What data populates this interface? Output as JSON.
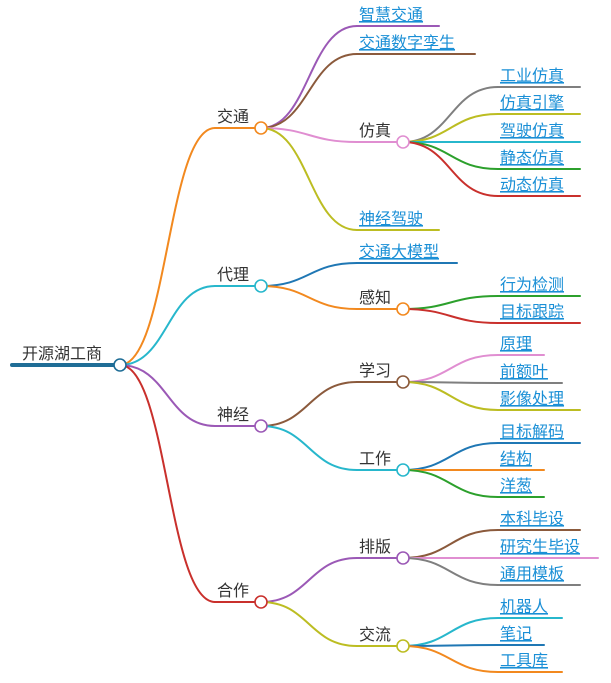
{
  "root": {
    "id": "root",
    "label": "开源湖工商"
  },
  "colors": {
    "root": "#1f6d96",
    "orange": "#f2891f",
    "cyan": "#27b7cc",
    "purple": "#9b59b6",
    "red": "#c9302c",
    "brown": "#8b5a3c",
    "pink": "#e08ed1",
    "olive": "#bcbd22",
    "gray": "#7f7f7f",
    "blue": "#1f77b4",
    "green": "#2ca02c",
    "leaf_text": "#1a8fd6"
  },
  "branches": [
    {
      "id": "traffic",
      "label": "交通",
      "color": "orange",
      "children": [
        {
          "id": "smart",
          "label": "智慧交通",
          "color": "purple",
          "link": true
        },
        {
          "id": "twin",
          "label": "交通数字孪生",
          "color": "brown",
          "link": true
        },
        {
          "id": "sim",
          "label": "仿真",
          "color": "pink",
          "children": [
            {
              "id": "ind",
              "label": "工业仿真",
              "color": "gray",
              "link": true
            },
            {
              "id": "engine",
              "label": "仿真引擎",
              "color": "olive",
              "link": true
            },
            {
              "id": "drive",
              "label": "驾驶仿真",
              "color": "cyan",
              "link": true
            },
            {
              "id": "static",
              "label": "静态仿真",
              "color": "green",
              "link": true
            },
            {
              "id": "dynamic",
              "label": "动态仿真",
              "color": "red",
              "link": true
            }
          ]
        },
        {
          "id": "neural",
          "label": "神经驾驶",
          "color": "olive",
          "link": true
        }
      ]
    },
    {
      "id": "agent",
      "label": "代理",
      "color": "cyan",
      "children": [
        {
          "id": "bigmodel",
          "label": "交通大模型",
          "color": "blue",
          "link": true
        },
        {
          "id": "perceive",
          "label": "感知",
          "color": "orange",
          "children": [
            {
              "id": "behavior",
              "label": "行为检测",
              "color": "green",
              "link": true
            },
            {
              "id": "tracking",
              "label": "目标跟踪",
              "color": "red",
              "link": true
            }
          ]
        }
      ]
    },
    {
      "id": "nerve",
      "label": "神经",
      "color": "purple",
      "children": [
        {
          "id": "learn",
          "label": "学习",
          "color": "brown",
          "children": [
            {
              "id": "principle",
              "label": "原理",
              "color": "pink",
              "link": true
            },
            {
              "id": "forehead",
              "label": "前额叶",
              "color": "gray",
              "link": true
            },
            {
              "id": "image",
              "label": "影像处理",
              "color": "olive",
              "link": true
            }
          ]
        },
        {
          "id": "work",
          "label": "工作",
          "color": "cyan",
          "children": [
            {
              "id": "decode",
              "label": "目标解码",
              "color": "blue",
              "link": true
            },
            {
              "id": "struct",
              "label": "结构",
              "color": "orange",
              "link": true
            },
            {
              "id": "onion",
              "label": "洋葱",
              "color": "green",
              "link": true
            }
          ]
        }
      ]
    },
    {
      "id": "coop",
      "label": "合作",
      "color": "red",
      "children": [
        {
          "id": "layout",
          "label": "排版",
          "color": "purple",
          "children": [
            {
              "id": "bach",
              "label": "本科毕设",
              "color": "brown",
              "link": true
            },
            {
              "id": "grad",
              "label": "研究生毕设",
              "color": "pink",
              "link": true
            },
            {
              "id": "template",
              "label": "通用模板",
              "color": "gray",
              "link": true
            }
          ]
        },
        {
          "id": "exchange",
          "label": "交流",
          "color": "olive",
          "children": [
            {
              "id": "robot",
              "label": "机器人",
              "color": "cyan",
              "link": true
            },
            {
              "id": "notes",
              "label": "笔记",
              "color": "blue",
              "link": true
            },
            {
              "id": "toolbox",
              "label": "工具库",
              "color": "orange",
              "link": true
            }
          ]
        }
      ]
    }
  ]
}
